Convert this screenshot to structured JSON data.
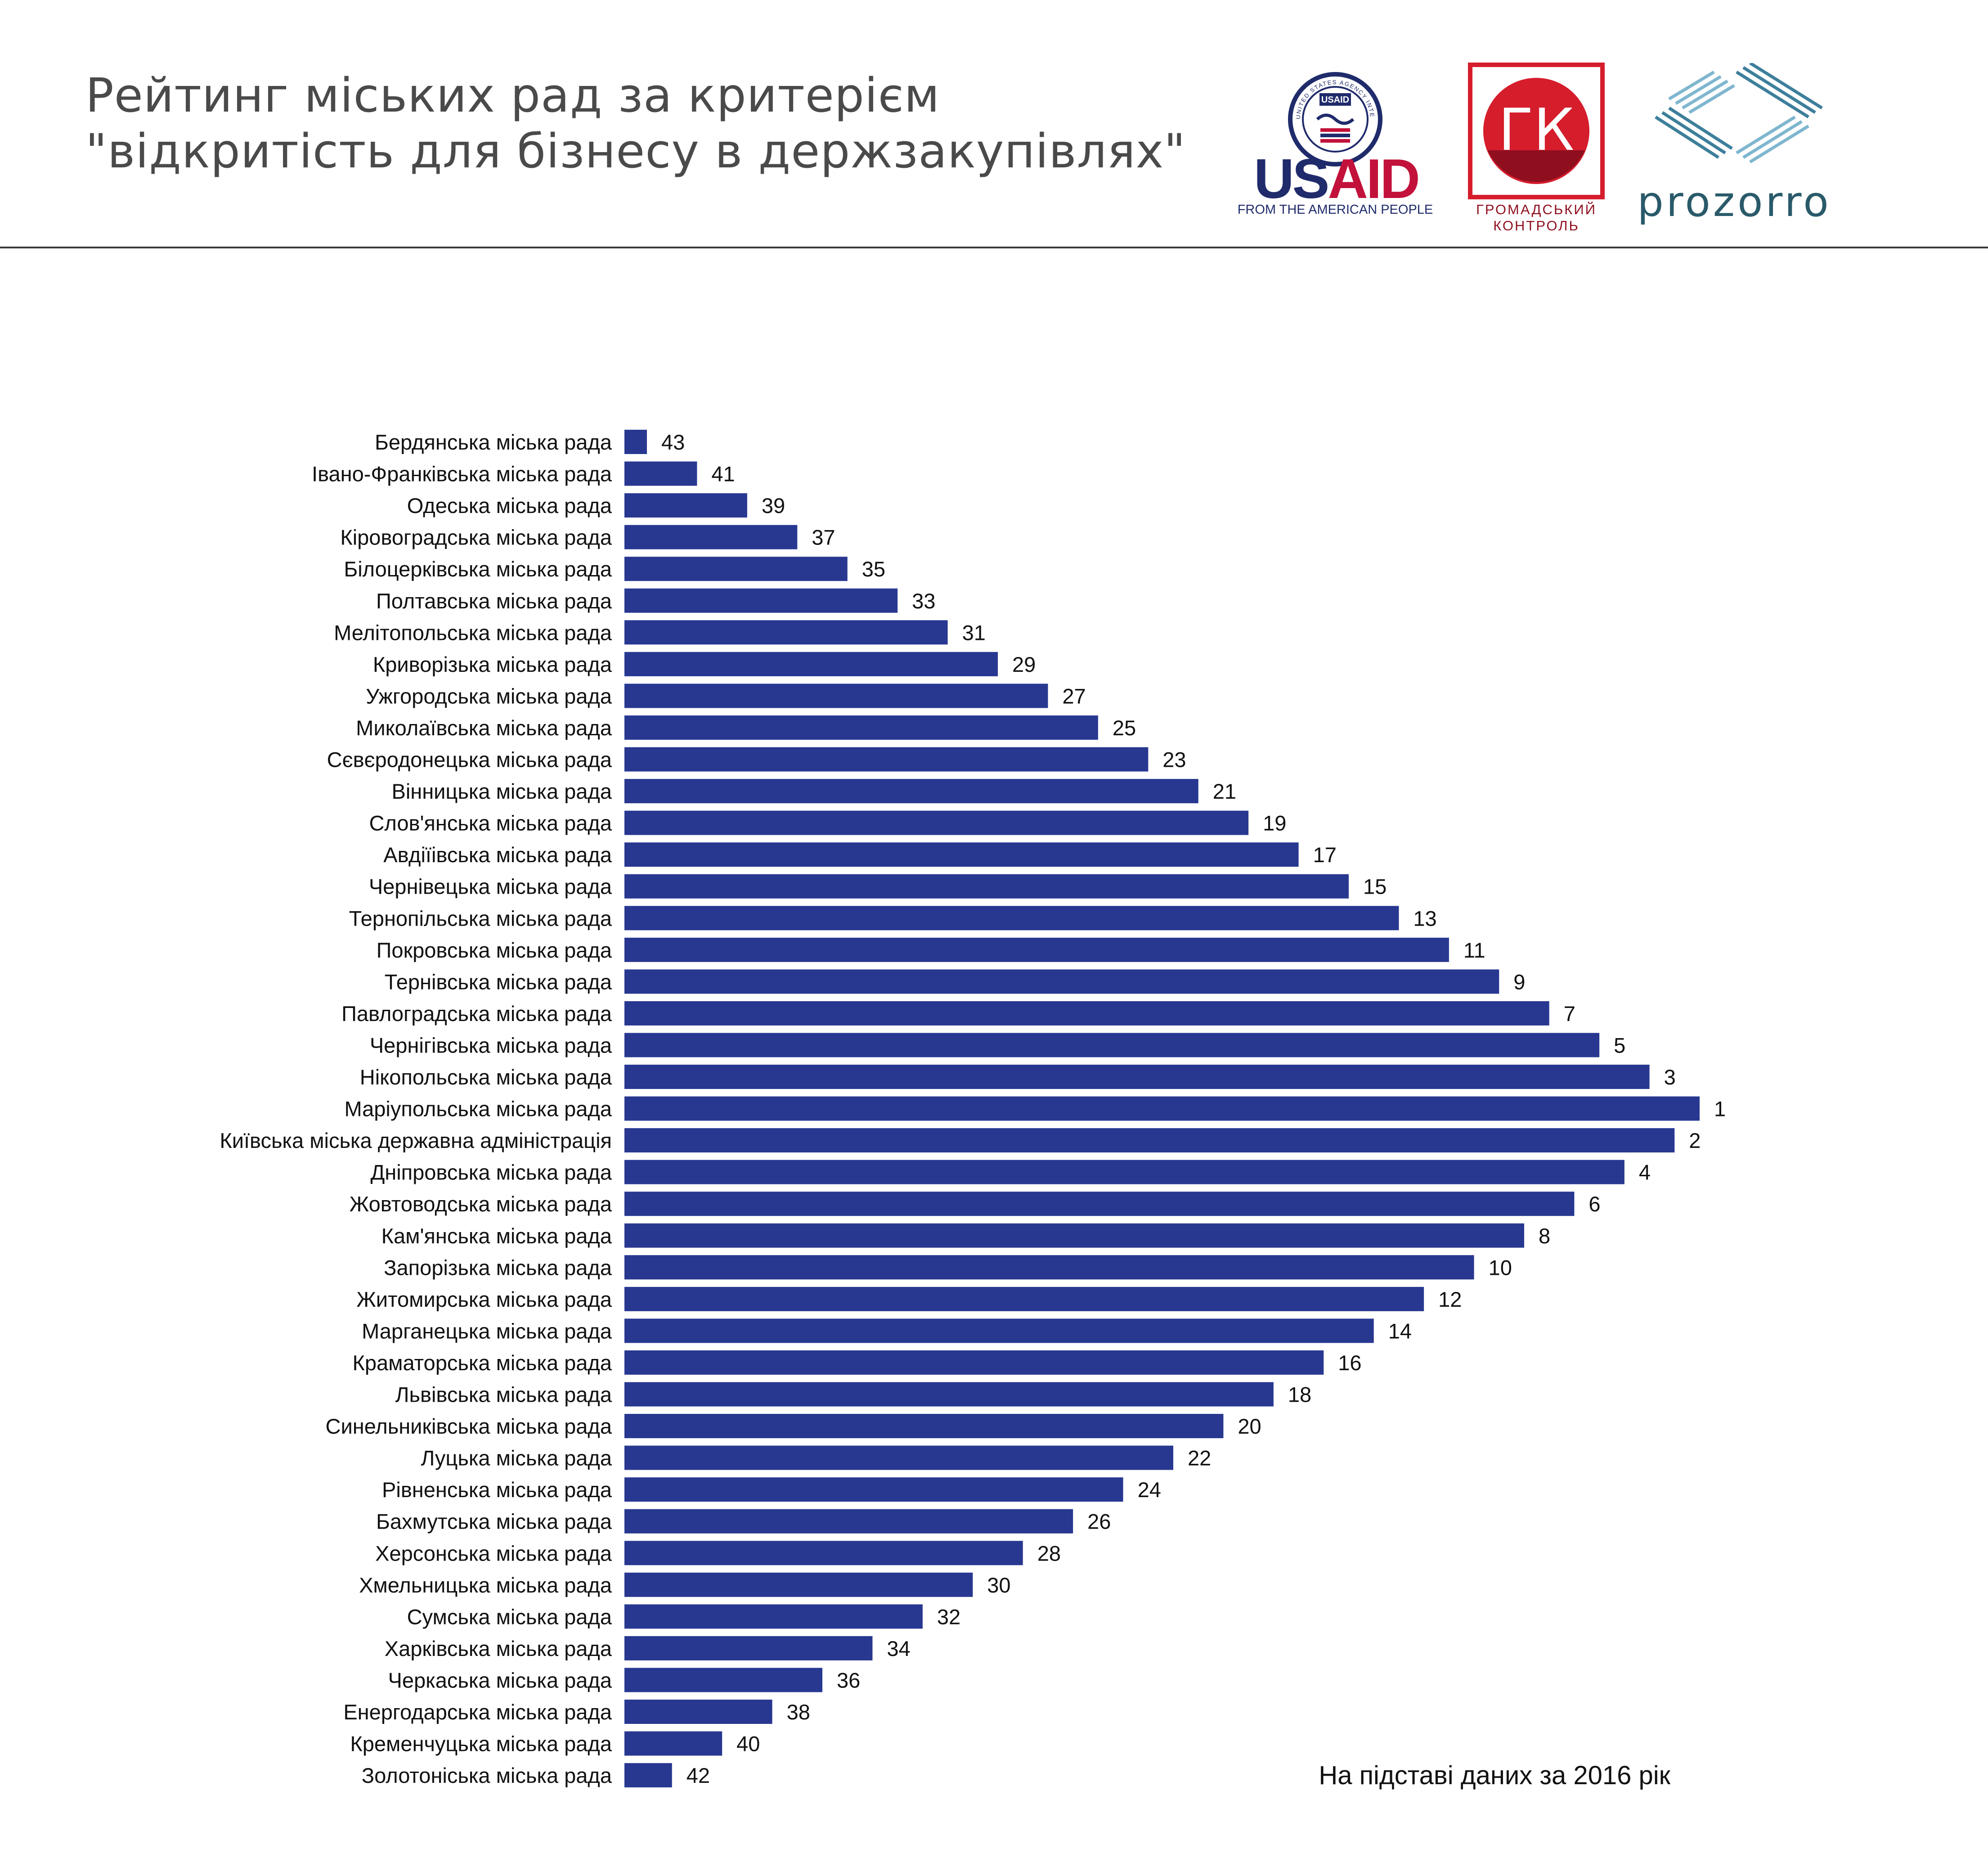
{
  "header": {
    "title_line1": "Рейтинг міських рад за критерієм",
    "title_line2": "\"відкритість для бізнесу в держзакупівлях\""
  },
  "logos": {
    "usaid": {
      "wordmark": "USAID",
      "tagline": "FROM THE AMERICAN PEOPLE",
      "seal_text": "UNITED STATES AGENCY INTERNATIONAL DEVELOPMENT",
      "seal_label": "USAID",
      "colors": {
        "blue": "#1f2b6b",
        "red": "#c2113a"
      }
    },
    "gk": {
      "letters": "ГК",
      "line1": "ГРОМАДСЬКИЙ",
      "line2": "КОНТРОЛЬ",
      "colors": {
        "red": "#d51d2c",
        "dark": "#8f0f1f"
      }
    },
    "prozorro": {
      "wordmark": "prozorro",
      "color": "#2a5a6a"
    }
  },
  "footnote": "На підставі даних за 2016 рік",
  "chart_data": {
    "type": "bar",
    "orientation": "horizontal",
    "bar_color": "#283891",
    "value_semantics": "rank label shown at bar end; bar length increases toward rank 1",
    "rows": [
      {
        "label": "Бердянська міська рада",
        "value": 43
      },
      {
        "label": "Івано-Франківська міська рада",
        "value": 41
      },
      {
        "label": "Одеська міська рада",
        "value": 39
      },
      {
        "label": "Кіровоградська міська рада",
        "value": 37
      },
      {
        "label": "Білоцерківська міська рада",
        "value": 35
      },
      {
        "label": "Полтавська міська рада",
        "value": 33
      },
      {
        "label": "Мелітопольська міська рада",
        "value": 31
      },
      {
        "label": "Криворізька міська рада",
        "value": 29
      },
      {
        "label": "Ужгородська міська рада",
        "value": 27
      },
      {
        "label": "Миколаївська міська рада",
        "value": 25
      },
      {
        "label": "Сєвєродонецька міська рада",
        "value": 23
      },
      {
        "label": "Вінницька міська рада",
        "value": 21
      },
      {
        "label": "Слов'янська міська рада",
        "value": 19
      },
      {
        "label": "Авдіїівська міська рада",
        "value": 17
      },
      {
        "label": "Чернівецька міська рада",
        "value": 15
      },
      {
        "label": "Тернопільська міська рада",
        "value": 13
      },
      {
        "label": "Покровська міська рада",
        "value": 11
      },
      {
        "label": "Тернівська міська рада",
        "value": 9
      },
      {
        "label": "Павлоградська міська рада",
        "value": 7
      },
      {
        "label": "Чернігівська міська рада",
        "value": 5
      },
      {
        "label": "Нікопольська міська рада",
        "value": 3
      },
      {
        "label": "Маріупольська міська рада",
        "value": 1
      },
      {
        "label": "Київська міська державна адміністрація",
        "value": 2
      },
      {
        "label": "Дніпровська міська рада",
        "value": 4
      },
      {
        "label": "Жовтоводська міська рада",
        "value": 6
      },
      {
        "label": "Кам'янська міська рада",
        "value": 8
      },
      {
        "label": "Запорізька міська рада",
        "value": 10
      },
      {
        "label": "Житомирська міська рада",
        "value": 12
      },
      {
        "label": "Марганецька міська рада",
        "value": 14
      },
      {
        "label": "Краматорська міська рада",
        "value": 16
      },
      {
        "label": "Львівська міська рада",
        "value": 18
      },
      {
        "label": "Синельниківська міська рада",
        "value": 20
      },
      {
        "label": "Луцька міська рада",
        "value": 22
      },
      {
        "label": "Рівненська міська рада",
        "value": 24
      },
      {
        "label": "Бахмутська міська рада",
        "value": 26
      },
      {
        "label": "Херсонська міська рада",
        "value": 28
      },
      {
        "label": "Хмельницька міська рада",
        "value": 30
      },
      {
        "label": "Сумська міська рада",
        "value": 32
      },
      {
        "label": "Харківська міська рада",
        "value": 34
      },
      {
        "label": "Черкаська міська рада",
        "value": 36
      },
      {
        "label": "Енергодарська міська рада",
        "value": 38
      },
      {
        "label": "Кременчуцька міська рада",
        "value": 40
      },
      {
        "label": "Золотоніська міська рада",
        "value": 42
      }
    ]
  }
}
